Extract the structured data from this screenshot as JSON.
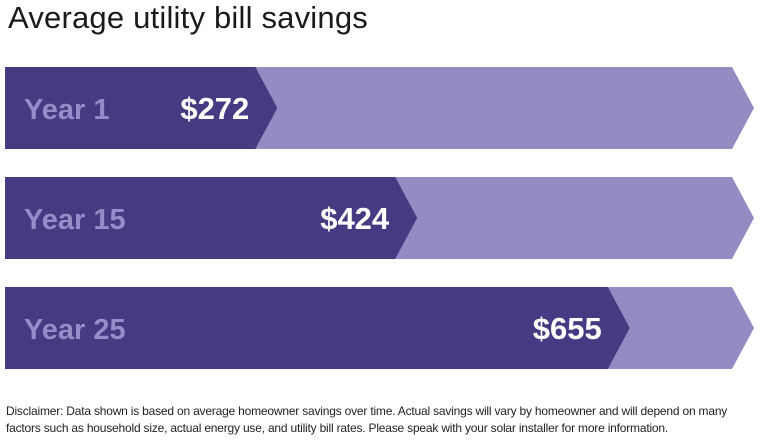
{
  "title": "Average utility bill savings",
  "colors": {
    "dark_bar": "#463a82",
    "light_bar": "#968ac2",
    "category_text": "#978cc7",
    "value_text": "#ffffff"
  },
  "chart_data": {
    "type": "bar",
    "orientation": "horizontal",
    "title": "Average utility bill savings",
    "categories": [
      "Year 1",
      "Year 15",
      "Year 25"
    ],
    "values": [
      272,
      424,
      655
    ],
    "value_labels": [
      "$272",
      "$424",
      "$655"
    ],
    "xlim": [
      0,
      790
    ],
    "xlabel": "",
    "ylabel": "",
    "grid": false,
    "legend": "none"
  },
  "disclaimer": "Disclaimer: Data shown is based on average homeowner savings over time. Actual savings will vary by homeowner and will depend on many factors such as household size, actual energy use, and utility bill rates. Please speak with your solar installer for more information."
}
